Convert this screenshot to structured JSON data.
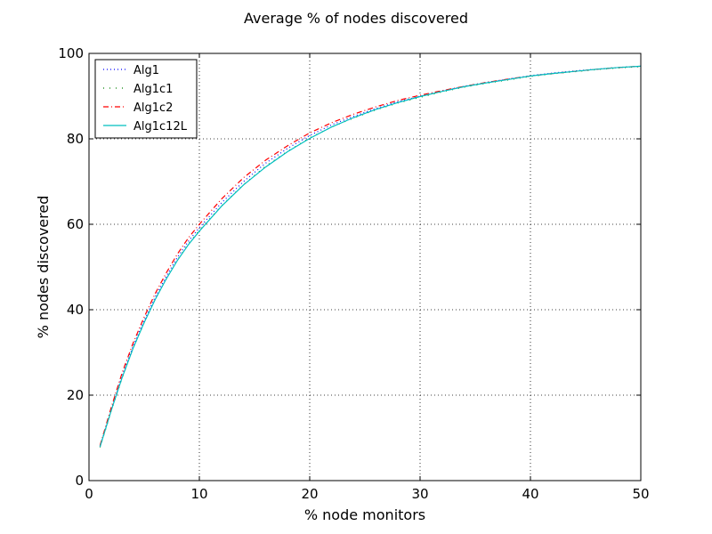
{
  "chart_data": {
    "type": "line",
    "title": "Average % of nodes discovered",
    "xlabel": "% node monitors",
    "ylabel": "% nodes discovered",
    "xlim": [
      0,
      50
    ],
    "ylim": [
      0,
      100
    ],
    "xticks": [
      0,
      10,
      20,
      30,
      40,
      50
    ],
    "yticks": [
      0,
      20,
      40,
      60,
      80,
      100
    ],
    "grid": true,
    "legend_position": "top-left",
    "x": [
      1,
      2,
      3,
      4,
      5,
      6,
      7,
      8,
      9,
      10,
      12,
      14,
      16,
      18,
      20,
      22,
      24,
      26,
      28,
      30,
      32,
      34,
      36,
      38,
      40,
      42,
      44,
      46,
      48,
      50
    ],
    "series": [
      {
        "name": "Alg1",
        "color": "#0000ff",
        "dash": "1,3",
        "values": [
          8.0,
          16.5,
          24.5,
          31.5,
          37.5,
          43.0,
          47.8,
          52.2,
          56.0,
          59.2,
          65.0,
          70.0,
          74.3,
          77.8,
          80.8,
          83.3,
          85.3,
          87.1,
          88.7,
          90.0,
          91.2,
          92.3,
          93.2,
          94.0,
          94.8,
          95.4,
          95.9,
          96.3,
          96.7,
          97.0
        ]
      },
      {
        "name": "Alg1c1",
        "color": "#008000",
        "dash": "1,6",
        "values": [
          7.8,
          16.2,
          24.0,
          31.0,
          37.0,
          42.5,
          47.2,
          51.6,
          55.4,
          58.6,
          64.3,
          69.3,
          73.6,
          77.1,
          80.2,
          82.8,
          84.9,
          86.8,
          88.4,
          89.7,
          91.0,
          92.1,
          93.0,
          93.8,
          94.6,
          95.2,
          95.7,
          96.2,
          96.6,
          96.9
        ]
      },
      {
        "name": "Alg1c2",
        "color": "#ff0000",
        "dash": "6,3,1,3",
        "values": [
          8.2,
          17.0,
          25.2,
          32.2,
          38.3,
          43.8,
          48.6,
          53.0,
          56.8,
          60.0,
          65.9,
          70.9,
          75.0,
          78.4,
          81.4,
          83.8,
          85.8,
          87.5,
          89.0,
          90.2,
          91.3,
          92.3,
          93.2,
          94.0,
          94.7,
          95.3,
          95.8,
          96.3,
          96.7,
          97.0
        ]
      },
      {
        "name": "Alg1c12L",
        "color": "#00bfbf",
        "dash": "",
        "values": [
          7.9,
          16.3,
          24.1,
          31.0,
          37.0,
          42.4,
          47.2,
          51.5,
          55.2,
          58.4,
          64.2,
          69.2,
          73.4,
          77.0,
          80.1,
          82.8,
          85.0,
          86.9,
          88.5,
          89.9,
          91.1,
          92.2,
          93.1,
          93.9,
          94.7,
          95.3,
          95.8,
          96.3,
          96.7,
          97.0
        ]
      }
    ]
  }
}
